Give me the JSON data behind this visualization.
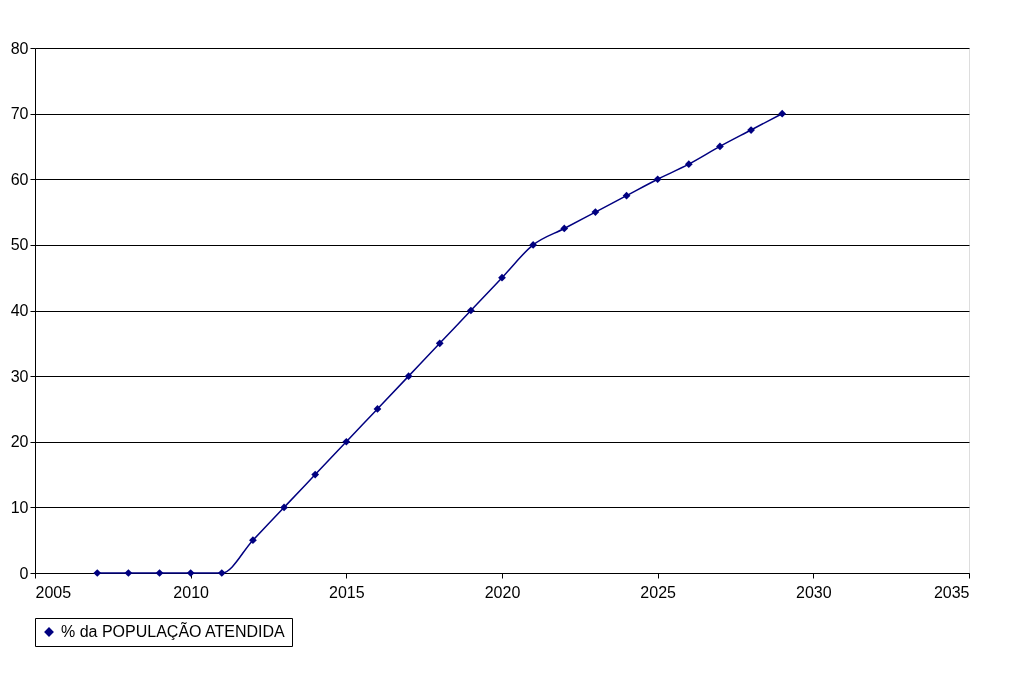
{
  "chart_data": {
    "type": "line",
    "x": [
      2007,
      2008,
      2009,
      2010,
      2011,
      2012,
      2013,
      2014,
      2015,
      2016,
      2017,
      2018,
      2019,
      2020,
      2021,
      2022,
      2023,
      2024,
      2025,
      2026,
      2027,
      2028,
      2029
    ],
    "series": [
      {
        "name": "% da POPULAÇÃO ATENDIDA",
        "color": "#000080",
        "values": [
          0,
          0,
          0,
          0,
          0,
          5,
          10,
          15,
          20,
          25,
          30,
          35,
          40,
          45,
          50,
          52.5,
          55,
          57.5,
          60,
          62.3,
          65,
          67.5,
          70
        ]
      }
    ],
    "xlim": [
      2005,
      2035
    ],
    "xticks": [
      2005,
      2010,
      2015,
      2020,
      2025,
      2030,
      2035
    ],
    "ylim": [
      0,
      80
    ],
    "yticks": [
      0,
      10,
      20,
      30,
      40,
      50,
      60,
      70,
      80
    ],
    "grid": "y",
    "legend": "bottom",
    "marker": "diamond",
    "line_style": "solid"
  }
}
